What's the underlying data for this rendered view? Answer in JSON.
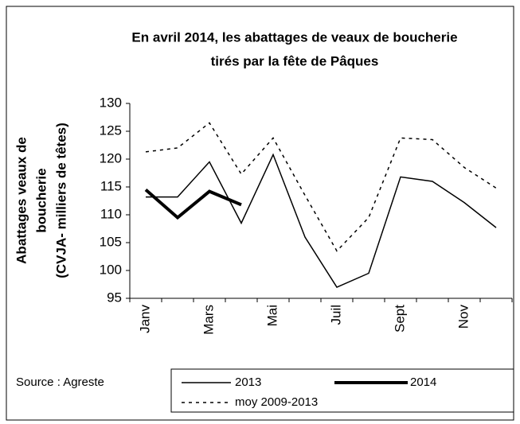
{
  "chart_data": {
    "type": "line",
    "title": [
      "En avril 2014,  les abattages de veaux de boucherie",
      "tirés par la  fête de Pâques"
    ],
    "y_label": [
      "Abattages veaux de",
      "boucherie",
      "(CVJA- milliers de têtes)"
    ],
    "source": "Source : Agreste",
    "categories": [
      "Janv",
      null,
      "Mars",
      null,
      "Mai",
      null,
      "Juil",
      null,
      "Sept",
      null,
      "Nov",
      null
    ],
    "series": [
      {
        "name": "2013",
        "color": "#000000",
        "width": 1.5,
        "dash": false,
        "values": [
          113.2,
          113.2,
          119.5,
          108.5,
          120.8,
          106,
          97,
          99.5,
          116.8,
          116,
          112.2,
          107.7
        ]
      },
      {
        "name": "2014",
        "color": "#000000",
        "width": 4,
        "dash": false,
        "values": [
          114.5,
          109.5,
          114.2,
          111.8,
          null,
          null,
          null,
          null,
          null,
          null,
          null,
          null
        ]
      },
      {
        "name": "moy 2009-2013",
        "color": "#000000",
        "width": 1.5,
        "dash": true,
        "values": [
          121.3,
          122,
          126.5,
          117.3,
          123.8,
          113.5,
          103.5,
          109.5,
          123.8,
          123.5,
          118.5,
          114.8
        ]
      }
    ],
    "ylim": [
      95,
      130
    ],
    "yticks": [
      95,
      100,
      105,
      110,
      115,
      120,
      125,
      130
    ],
    "grid": false
  }
}
